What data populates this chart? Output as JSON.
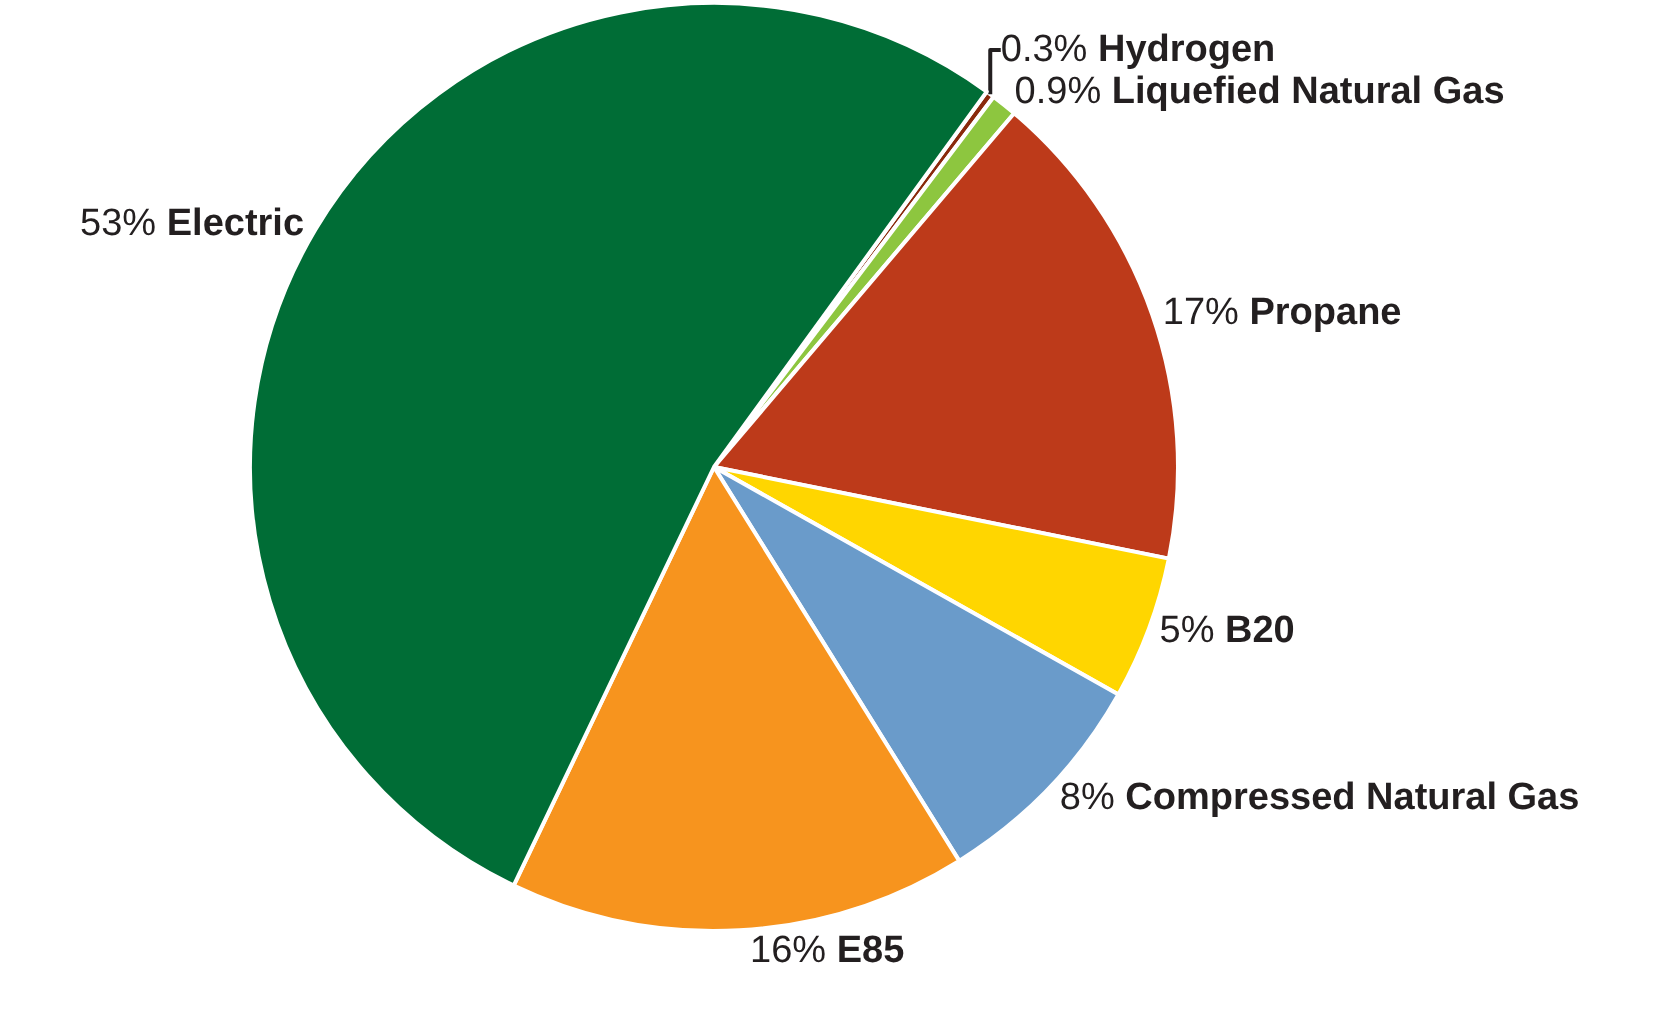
{
  "chart_data": {
    "type": "pie",
    "categories": [
      "Hydrogen",
      "Liquefied Natural Gas",
      "Propane",
      "B20",
      "Compressed Natural Gas",
      "E85",
      "Electric"
    ],
    "values": [
      0.3,
      0.9,
      17,
      5,
      8,
      16,
      53
    ],
    "value_labels": [
      "0.3%",
      "0.9%",
      "17%",
      "5%",
      "8%",
      "16%",
      "53%"
    ],
    "colors": [
      "#8a2a0c",
      "#8dc63f",
      "#bd3a1a",
      "#ffd600",
      "#6a9bca",
      "#f7941e",
      "#006d36"
    ],
    "legend": false
  }
}
